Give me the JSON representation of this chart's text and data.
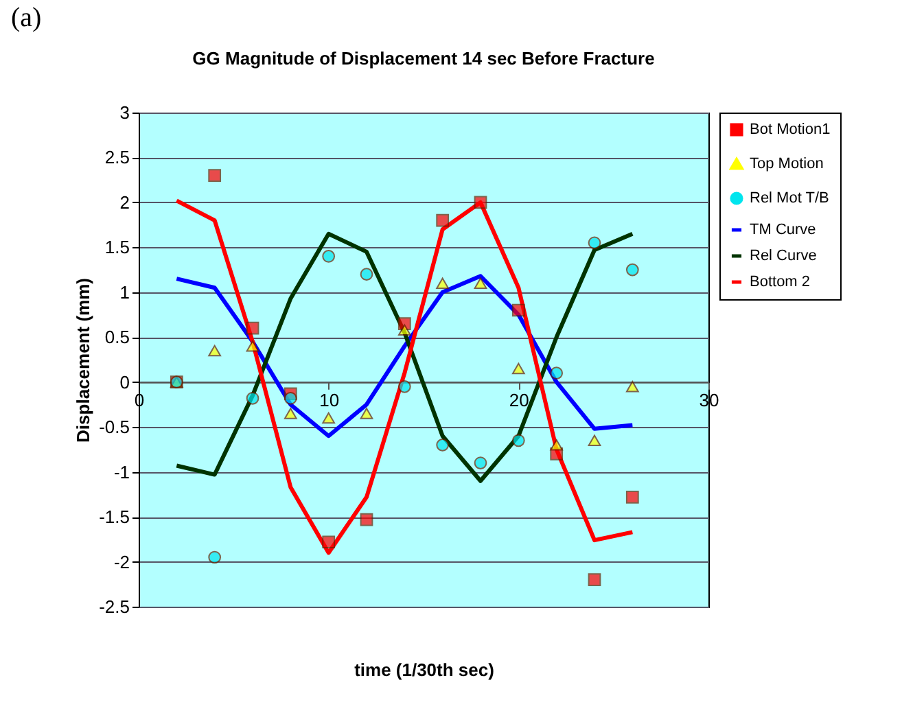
{
  "chart_data": {
    "type": "scatter",
    "title": "GG Magnitude of Displacement 14 sec Before Fracture",
    "xlabel": "time (1/30th sec)",
    "ylabel": "Displacement (mm)",
    "annotations": [
      "(a)"
    ],
    "x": [
      2,
      4,
      6,
      8,
      10,
      12,
      14,
      16,
      18,
      20,
      22,
      24,
      26
    ],
    "xlim": [
      0,
      30
    ],
    "xticks": [
      0,
      10,
      20,
      30
    ],
    "ylim": [
      -2.5,
      3
    ],
    "yticks": [
      -2.5,
      -2,
      -1.5,
      -1,
      -0.5,
      0,
      0.5,
      1,
      1.5,
      2,
      2.5,
      3
    ],
    "grid": "y",
    "legend": "right",
    "series": [
      {
        "name": "Bot Motion1",
        "marker": "square",
        "color": "#ff0000",
        "values": [
          0,
          2.3,
          0.6,
          -0.13,
          -1.78,
          -1.53,
          0.65,
          1.8,
          2.0,
          0.8,
          -0.8,
          -2.2,
          -1.28
        ]
      },
      {
        "name": "Top Motion",
        "marker": "triangle",
        "color": "#ffff00",
        "values": [
          0,
          0.35,
          0.4,
          -0.35,
          -0.4,
          -0.35,
          0.58,
          1.1,
          1.1,
          0.15,
          -0.7,
          -0.65,
          -0.05
        ]
      },
      {
        "name": "Rel Mot T/B",
        "marker": "circle",
        "color": "#00e5ee",
        "values": [
          0,
          -1.95,
          -0.18,
          -0.18,
          1.4,
          1.2,
          -0.05,
          -0.7,
          -0.9,
          -0.65,
          0.1,
          1.55,
          1.25
        ]
      },
      {
        "name": "TM Curve",
        "type": "line",
        "marker": "none",
        "color": "#0000ff",
        "values": [
          1.15,
          1.05,
          0.45,
          -0.25,
          -0.6,
          -0.25,
          0.4,
          1.0,
          1.18,
          0.75,
          0.0,
          -0.52,
          -0.48
        ]
      },
      {
        "name": "Rel Curve",
        "type": "line",
        "marker": "none",
        "color": "#003300",
        "values": [
          -0.93,
          -1.03,
          -0.15,
          0.93,
          1.65,
          1.45,
          0.55,
          -0.6,
          -1.1,
          -0.6,
          0.5,
          1.47,
          1.65
        ]
      },
      {
        "name": "Bottom 2",
        "type": "line",
        "marker": "none",
        "color": "#ff0000",
        "values": [
          2.02,
          1.8,
          0.45,
          -1.17,
          -1.9,
          -1.28,
          0.1,
          1.7,
          2.0,
          1.05,
          -0.75,
          -1.76,
          -1.67
        ]
      }
    ]
  }
}
